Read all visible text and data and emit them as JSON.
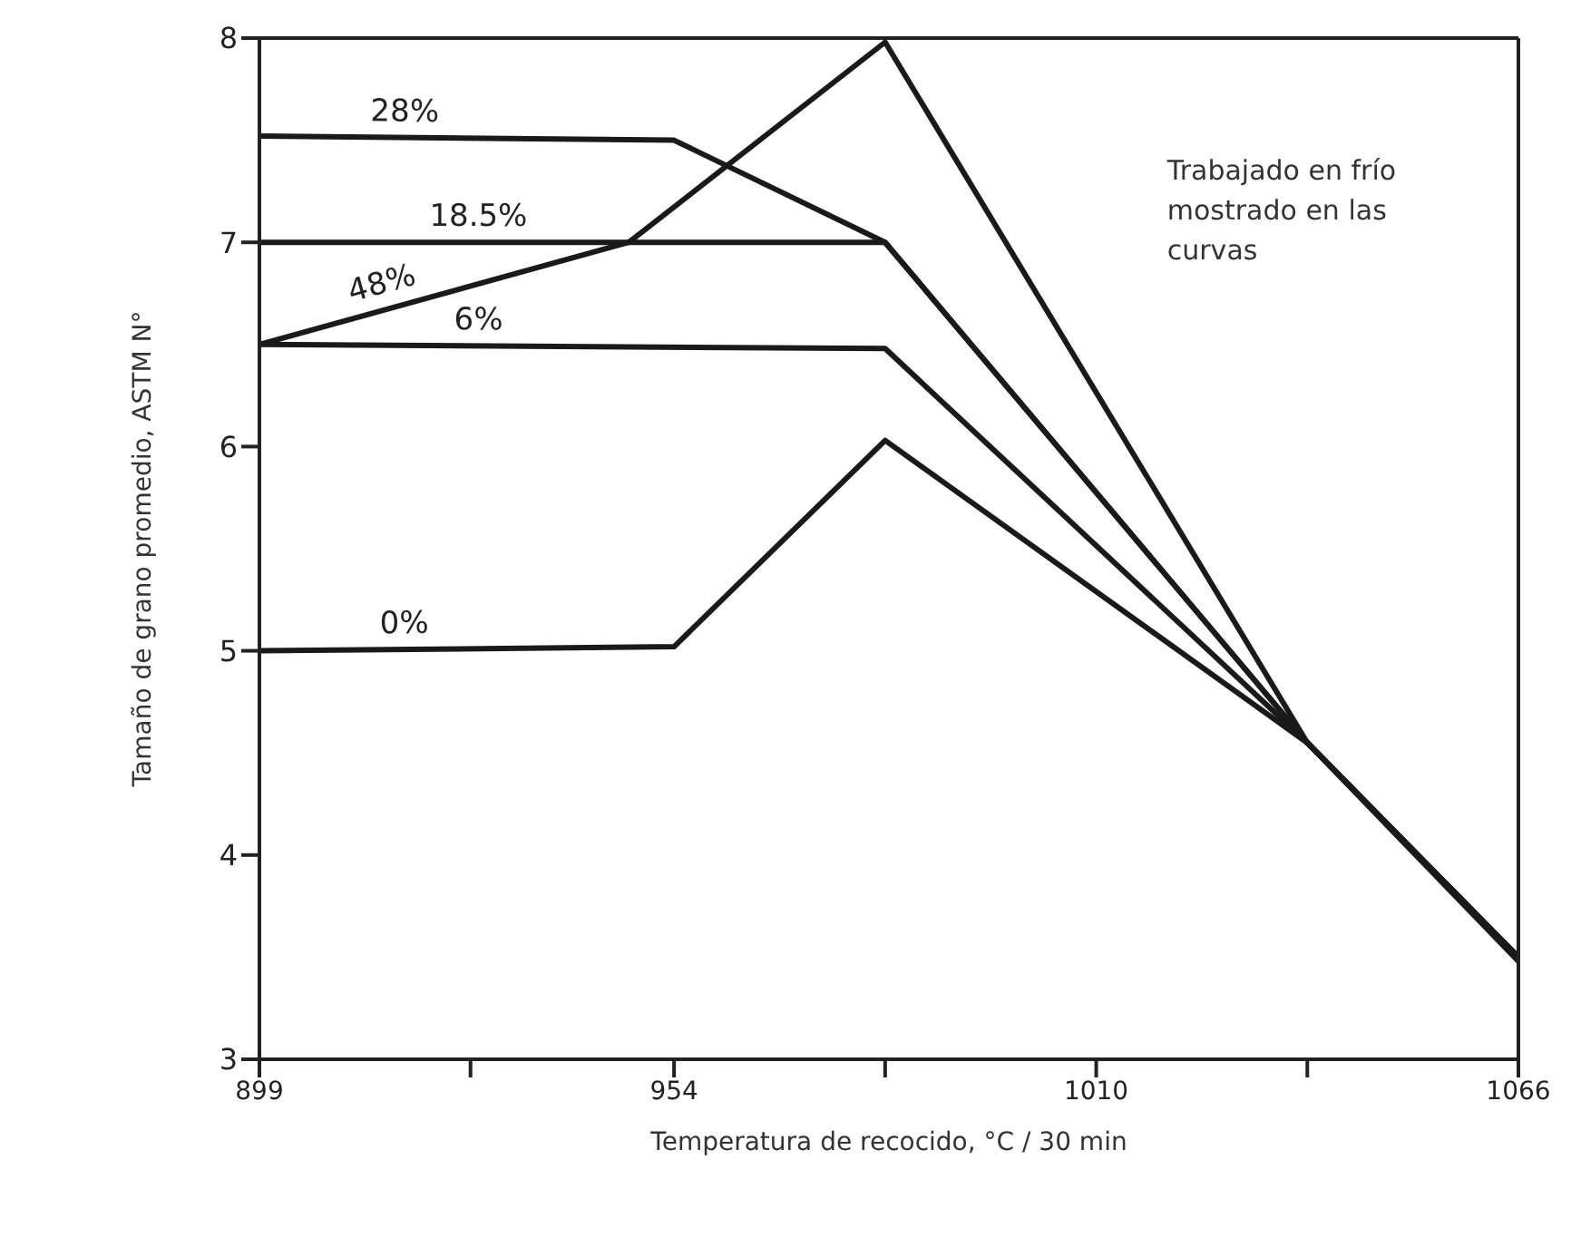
{
  "chart_data": {
    "type": "line",
    "xlabel": "Temperatura de recocido, °C / 30 min",
    "ylabel": "Tamaño de grano promedio, ASTM N°",
    "annotations": [
      "Trabajado en frío mostrado en las curvas"
    ],
    "xlim": [
      899,
      1066
    ],
    "xticks": [
      899,
      {
        "value": 927,
        "label": null
      },
      954,
      {
        "value": 982,
        "label": null
      },
      1010,
      {
        "value": 1038,
        "label": null
      },
      1066
    ],
    "ylim": [
      3,
      8
    ],
    "yticks": [
      3,
      4,
      5,
      6,
      7,
      8
    ],
    "grid": false,
    "legend": false,
    "marker": "none",
    "line_style": "solid",
    "series": [
      {
        "name": "28%",
        "color": "#1a1a1a",
        "x": [
          899,
          954,
          982,
          1038,
          1066
        ],
        "values": [
          7.52,
          7.5,
          7.0,
          4.55,
          3.5
        ]
      },
      {
        "name": "18.5%",
        "color": "#1a1a1a",
        "x": [
          899,
          982,
          1038,
          1066
        ],
        "values": [
          7.0,
          7.0,
          4.55,
          3.5
        ]
      },
      {
        "name": "48%",
        "color": "#1a1a1a",
        "x": [
          899,
          948,
          982,
          1038,
          1066
        ],
        "values": [
          6.5,
          7.0,
          7.98,
          4.55,
          3.5
        ]
      },
      {
        "name": "6%",
        "color": "#1a1a1a",
        "x": [
          899,
          982,
          1038,
          1066
        ],
        "values": [
          6.5,
          6.48,
          4.55,
          3.5
        ]
      },
      {
        "name": "0%",
        "color": "#1a1a1a",
        "x": [
          899,
          954,
          982,
          1038,
          1066
        ],
        "values": [
          5.0,
          5.02,
          6.03,
          4.55,
          3.48
        ]
      }
    ]
  }
}
